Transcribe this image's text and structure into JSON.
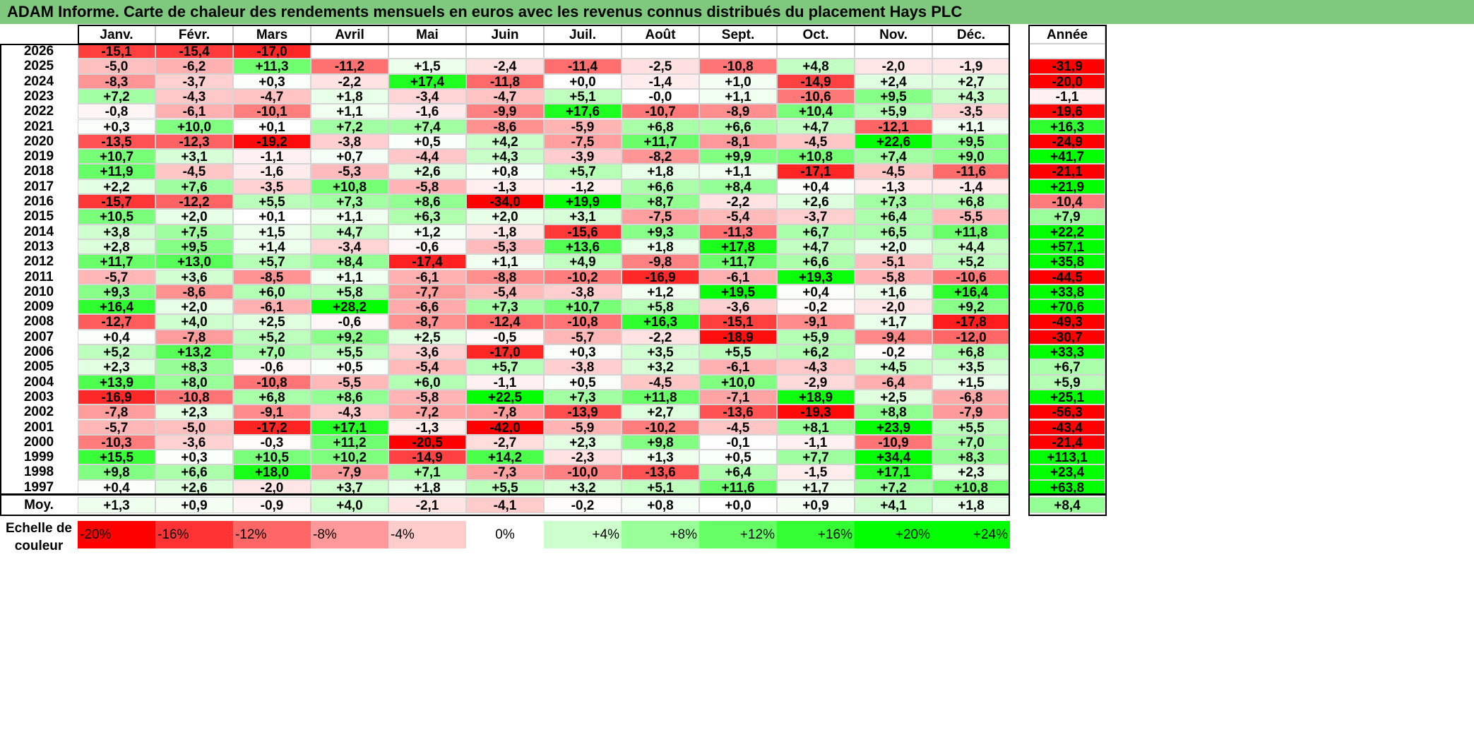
{
  "title": "ADAM Informe. Carte de chaleur des rendements mensuels en euros avec les revenus connus distribués du placement Hays PLC",
  "chart_data": {
    "type": "heatmap",
    "title": "ADAM Informe. Carte de chaleur des rendements mensuels en euros avec les revenus connus distribués du placement Hays PLC",
    "columns": [
      "Janv.",
      "Févr.",
      "Mars",
      "Avril",
      "Mai",
      "Juin",
      "Juil.",
      "Août",
      "Sept.",
      "Oct.",
      "Nov.",
      "Déc."
    ],
    "year_label": "Année",
    "rows": [
      {
        "year": "2026",
        "months": [
          "-15,1",
          "-15,4",
          "-17,0",
          "",
          "",
          "",
          "",
          "",
          "",
          "",
          "",
          ""
        ],
        "annual": ""
      },
      {
        "year": "2025",
        "months": [
          "-5,0",
          "-6,2",
          "+11,3",
          "-11,2",
          "+1,5",
          "-2,4",
          "-11,4",
          "-2,5",
          "-10,8",
          "+4,8",
          "-2,0",
          "-1,9"
        ],
        "annual": "-31,9"
      },
      {
        "year": "2024",
        "months": [
          "-8,3",
          "-3,7",
          "+0,3",
          "-2,2",
          "+17,4",
          "-11,8",
          "+0,0",
          "-1,4",
          "+1,0",
          "-14,9",
          "+2,4",
          "+2,7"
        ],
        "annual": "-20,0"
      },
      {
        "year": "2023",
        "months": [
          "+7,2",
          "-4,3",
          "-4,7",
          "+1,8",
          "-3,4",
          "-4,7",
          "+5,1",
          "-0,0",
          "+1,1",
          "-10,6",
          "+9,5",
          "+4,3"
        ],
        "annual": "-1,1"
      },
      {
        "year": "2022",
        "months": [
          "-0,8",
          "-6,1",
          "-10,1",
          "+1,1",
          "-1,6",
          "-9,9",
          "+17,6",
          "-10,7",
          "-8,9",
          "+10,4",
          "+5,9",
          "-3,5"
        ],
        "annual": "-19,6"
      },
      {
        "year": "2021",
        "months": [
          "+0,3",
          "+10,0",
          "+0,1",
          "+7,2",
          "+7,4",
          "-8,6",
          "-5,9",
          "+6,8",
          "+6,6",
          "+4,7",
          "-12,1",
          "+1,1"
        ],
        "annual": "+16,3"
      },
      {
        "year": "2020",
        "months": [
          "-13,5",
          "-12,3",
          "-19,2",
          "-3,8",
          "+0,5",
          "+4,2",
          "-7,5",
          "+11,7",
          "-8,1",
          "-4,5",
          "+22,6",
          "+9,5"
        ],
        "annual": "-24,9"
      },
      {
        "year": "2019",
        "months": [
          "+10,7",
          "+3,1",
          "-1,1",
          "+0,7",
          "-4,4",
          "+4,3",
          "-3,9",
          "-8,2",
          "+9,9",
          "+10,8",
          "+7,4",
          "+9,0"
        ],
        "annual": "+41,7"
      },
      {
        "year": "2018",
        "months": [
          "+11,9",
          "-4,5",
          "-1,6",
          "-5,3",
          "+2,6",
          "+0,8",
          "+5,7",
          "+1,8",
          "+1,1",
          "-17,1",
          "-4,5",
          "-11,6"
        ],
        "annual": "-21,1"
      },
      {
        "year": "2017",
        "months": [
          "+2,2",
          "+7,6",
          "-3,5",
          "+10,8",
          "-5,8",
          "-1,3",
          "-1,2",
          "+6,6",
          "+8,4",
          "+0,4",
          "-1,3",
          "-1,4"
        ],
        "annual": "+21,9"
      },
      {
        "year": "2016",
        "months": [
          "-15,7",
          "-12,2",
          "+5,5",
          "+7,3",
          "+8,6",
          "-34,0",
          "+19,9",
          "+8,7",
          "-2,2",
          "+2,6",
          "+7,3",
          "+6,8"
        ],
        "annual": "-10,4"
      },
      {
        "year": "2015",
        "months": [
          "+10,5",
          "+2,0",
          "+0,1",
          "+1,1",
          "+6,3",
          "+2,0",
          "+3,1",
          "-7,5",
          "-5,4",
          "-3,7",
          "+6,4",
          "-5,5"
        ],
        "annual": "+7,9"
      },
      {
        "year": "2014",
        "months": [
          "+3,8",
          "+7,5",
          "+1,5",
          "+4,7",
          "+1,2",
          "-1,8",
          "-15,6",
          "+9,3",
          "-11,3",
          "+6,7",
          "+6,5",
          "+11,8"
        ],
        "annual": "+22,2"
      },
      {
        "year": "2013",
        "months": [
          "+2,8",
          "+9,5",
          "+1,4",
          "-3,4",
          "-0,6",
          "-5,3",
          "+13,6",
          "+1,8",
          "+17,8",
          "+4,7",
          "+2,0",
          "+4,4"
        ],
        "annual": "+57,1"
      },
      {
        "year": "2012",
        "months": [
          "+11,7",
          "+13,0",
          "+5,7",
          "+8,4",
          "-17,4",
          "+1,1",
          "+4,9",
          "-9,8",
          "+11,7",
          "+6,6",
          "-5,1",
          "+5,2"
        ],
        "annual": "+35,8"
      },
      {
        "year": "2011",
        "months": [
          "-5,7",
          "+3,6",
          "-8,5",
          "+1,1",
          "-6,1",
          "-8,8",
          "-10,2",
          "-16,9",
          "-6,1",
          "+19,3",
          "-5,8",
          "-10,6"
        ],
        "annual": "-44,5"
      },
      {
        "year": "2010",
        "months": [
          "+9,3",
          "-8,6",
          "+6,0",
          "+5,8",
          "-7,7",
          "-5,4",
          "-3,8",
          "+1,2",
          "+19,5",
          "+0,4",
          "+1,6",
          "+16,4"
        ],
        "annual": "+33,8"
      },
      {
        "year": "2009",
        "months": [
          "+16,4",
          "+2,0",
          "-6,1",
          "+28,2",
          "-6,6",
          "+7,3",
          "+10,7",
          "+5,8",
          "-3,6",
          "-0,2",
          "-2,0",
          "+9,2"
        ],
        "annual": "+70,6"
      },
      {
        "year": "2008",
        "months": [
          "-12,7",
          "+4,0",
          "+2,5",
          "-0,6",
          "-8,7",
          "-12,4",
          "-10,8",
          "+16,3",
          "-15,1",
          "-9,1",
          "+1,7",
          "-17,8"
        ],
        "annual": "-49,3"
      },
      {
        "year": "2007",
        "months": [
          "+0,4",
          "-7,8",
          "+5,2",
          "+9,2",
          "+2,5",
          "-0,5",
          "-5,7",
          "-2,2",
          "-18,9",
          "+5,9",
          "-9,4",
          "-12,0"
        ],
        "annual": "-30,7"
      },
      {
        "year": "2006",
        "months": [
          "+5,2",
          "+13,2",
          "+7,0",
          "+5,5",
          "-3,6",
          "-17,0",
          "+0,3",
          "+3,5",
          "+5,5",
          "+6,2",
          "-0,2",
          "+6,8"
        ],
        "annual": "+33,3"
      },
      {
        "year": "2005",
        "months": [
          "+2,3",
          "+8,3",
          "-0,6",
          "+0,5",
          "-5,4",
          "+5,7",
          "-3,8",
          "+3,2",
          "-6,1",
          "-4,3",
          "+4,5",
          "+3,5"
        ],
        "annual": "+6,7"
      },
      {
        "year": "2004",
        "months": [
          "+13,9",
          "+8,0",
          "-10,8",
          "-5,5",
          "+6,0",
          "-1,1",
          "+0,5",
          "-4,5",
          "+10,0",
          "-2,9",
          "-6,4",
          "+1,5"
        ],
        "annual": "+5,9"
      },
      {
        "year": "2003",
        "months": [
          "-16,9",
          "-10,8",
          "+6,8",
          "+8,6",
          "-5,8",
          "+22,5",
          "+7,3",
          "+11,8",
          "-7,1",
          "+18,9",
          "+2,5",
          "-6,8"
        ],
        "annual": "+25,1"
      },
      {
        "year": "2002",
        "months": [
          "-7,8",
          "+2,3",
          "-9,1",
          "-4,3",
          "-7,2",
          "-7,8",
          "-13,9",
          "+2,7",
          "-13,6",
          "-19,3",
          "+8,8",
          "-7,9"
        ],
        "annual": "-56,3"
      },
      {
        "year": "2001",
        "months": [
          "-5,7",
          "-5,0",
          "-17,2",
          "+17,1",
          "-1,3",
          "-42,0",
          "-5,9",
          "-10,2",
          "-4,5",
          "+8,1",
          "+23,9",
          "+5,5"
        ],
        "annual": "-43,4"
      },
      {
        "year": "2000",
        "months": [
          "-10,3",
          "-3,6",
          "-0,3",
          "+11,2",
          "-20,5",
          "-2,7",
          "+2,3",
          "+9,8",
          "-0,1",
          "-1,1",
          "-10,9",
          "+7,0"
        ],
        "annual": "-21,4"
      },
      {
        "year": "1999",
        "months": [
          "+15,5",
          "+0,3",
          "+10,5",
          "+10,2",
          "-14,9",
          "+14,2",
          "-2,3",
          "+1,3",
          "+0,5",
          "+7,7",
          "+34,4",
          "+8,3"
        ],
        "annual": "+113,1"
      },
      {
        "year": "1998",
        "months": [
          "+9,8",
          "+6,6",
          "+18,0",
          "-7,9",
          "+7,1",
          "-7,3",
          "-10,0",
          "-13,6",
          "+6,4",
          "-1,5",
          "+17,1",
          "+2,3"
        ],
        "annual": "+23,4"
      },
      {
        "year": "1997",
        "months": [
          "+0,4",
          "+2,6",
          "-2,0",
          "+3,7",
          "+1,8",
          "+5,5",
          "+3,2",
          "+5,1",
          "+11,6",
          "+1,7",
          "+7,2",
          "+10,8"
        ],
        "annual": "+63,8"
      }
    ],
    "average": {
      "label": "Moy.",
      "months": [
        "+1,3",
        "+0,9",
        "-0,9",
        "+4,0",
        "-2,1",
        "-4,1",
        "-0,2",
        "+0,8",
        "+0,0",
        "+0,9",
        "+4,1",
        "+1,8"
      ],
      "annual": "+8,4"
    },
    "color_scale": {
      "label_lines": [
        "Echelle de",
        "couleur"
      ],
      "steps": [
        "-20%",
        "-16%",
        "-12%",
        "-8%",
        "-4%",
        "0%",
        "+4%",
        "+8%",
        "+12%",
        "+16%",
        "+20%",
        "+24%"
      ]
    },
    "colors": {
      "negative": "#ff0000",
      "neutral": "#ffffff",
      "positive": "#00ff00",
      "title_bg": "#7fc97f"
    }
  }
}
